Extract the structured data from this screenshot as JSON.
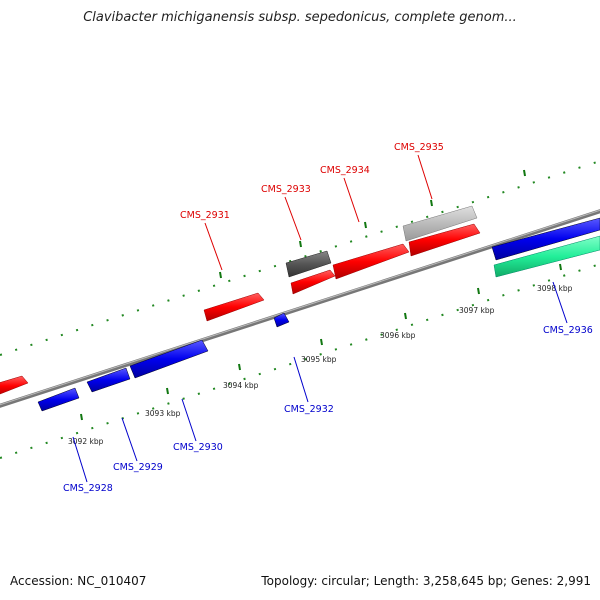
{
  "title": "Clavibacter michiganensis subsp. sepedonicus, complete genom...",
  "footer": {
    "accession": "Accession: NC_010407",
    "topology": "Topology: circular; Length: 3,258,645 bp; Genes: 2,991"
  },
  "colors": {
    "forward_gene": "#ff0000",
    "reverse_gene": "#0000ee",
    "dark_gene": "#555555",
    "light_gene": "#bbbbbb",
    "teal_gene": "#22ee99",
    "forward_label": "#dd0000",
    "reverse_label": "#0000cc",
    "backbone": "#888888",
    "tick": "#228822"
  },
  "scale_ticks": [
    "3092 kbp",
    "3093 kbp",
    "3094 kbp",
    "3095 kbp",
    "3096 kbp",
    "3097 kbp",
    "3098 kbp"
  ],
  "genes": [
    {
      "name": "CMS_2928",
      "strand": "reverse",
      "color": "reverse",
      "labeled": true
    },
    {
      "name": "CMS_2929",
      "strand": "reverse",
      "color": "reverse",
      "labeled": true
    },
    {
      "name": "CMS_2930",
      "strand": "reverse",
      "color": "reverse",
      "labeled": true
    },
    {
      "name": "CMS_2931",
      "strand": "forward",
      "color": "forward",
      "labeled": true
    },
    {
      "name": "CMS_2932",
      "strand": "reverse",
      "color": "reverse",
      "labeled": true
    },
    {
      "name": "CMS_2933",
      "strand": "forward",
      "color": "dark",
      "labeled": true
    },
    {
      "name": "CMS_2934",
      "strand": "forward",
      "color": "forward",
      "labeled": true
    },
    {
      "name": "CMS_2935",
      "strand": "forward",
      "color": "light",
      "labeled": true
    },
    {
      "name": "CMS_2936",
      "strand": "reverse",
      "color": "reverse",
      "labeled": true
    }
  ]
}
